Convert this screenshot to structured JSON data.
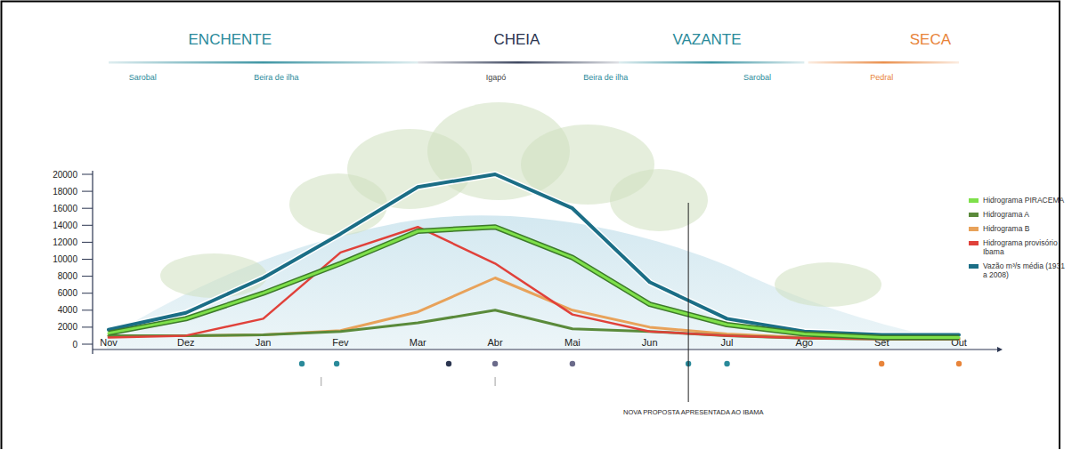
{
  "chart_data": {
    "type": "line",
    "seasons": [
      {
        "label": "ENCHENTE",
        "habitats": [
          "Sarobal",
          "Beira de ilha"
        ]
      },
      {
        "label": "CHEIA",
        "habitats": [
          "Igapó"
        ]
      },
      {
        "label": "VAZANTE",
        "habitats": [
          "Beira de ilha",
          "Sarobal"
        ]
      },
      {
        "label": "SECA",
        "habitats": [
          "Pedral"
        ]
      }
    ],
    "categories": [
      "Nov",
      "Dez",
      "Jan",
      "Fev",
      "Mar",
      "Abr",
      "Mai",
      "Jun",
      "Jul",
      "Ago",
      "Set",
      "Out"
    ],
    "series": [
      {
        "name": "Hidrograma PIRACEMA",
        "color": "#7ee04a",
        "values": [
          1300,
          3000,
          6000,
          9500,
          13300,
          13800,
          10200,
          4700,
          2300,
          1200,
          800,
          800
        ]
      },
      {
        "name": "Hidrograma A",
        "color": "#5a8a3a",
        "values": [
          1000,
          1000,
          1100,
          1500,
          2500,
          4000,
          1800,
          1500,
          1000,
          700,
          600,
          600
        ]
      },
      {
        "name": "Hidrograma B",
        "color": "#e8a25a",
        "values": [
          1000,
          1000,
          1100,
          1600,
          3800,
          7800,
          4000,
          2000,
          1200,
          800,
          700,
          700
        ]
      },
      {
        "name": "Hidrograma provisório Ibama",
        "color": "#e0413a",
        "values": [
          800,
          1000,
          3000,
          10800,
          13800,
          9500,
          3500,
          1500,
          1000,
          700,
          600,
          600
        ]
      },
      {
        "name": "Vazão m³/s média (1931 a 2008)",
        "color": "#1b6e86",
        "values": [
          1700,
          3700,
          7800,
          13000,
          18500,
          20000,
          16000,
          7300,
          3000,
          1500,
          1100,
          1100
        ]
      }
    ],
    "ylim": [
      0,
      20000
    ],
    "yticks": [
      0,
      2000,
      4000,
      6000,
      8000,
      10000,
      12000,
      14000,
      16000,
      18000,
      20000
    ],
    "annotation": "NOVA PROPOSTA APRESENTADA AO IBAMA",
    "legend": "right"
  }
}
